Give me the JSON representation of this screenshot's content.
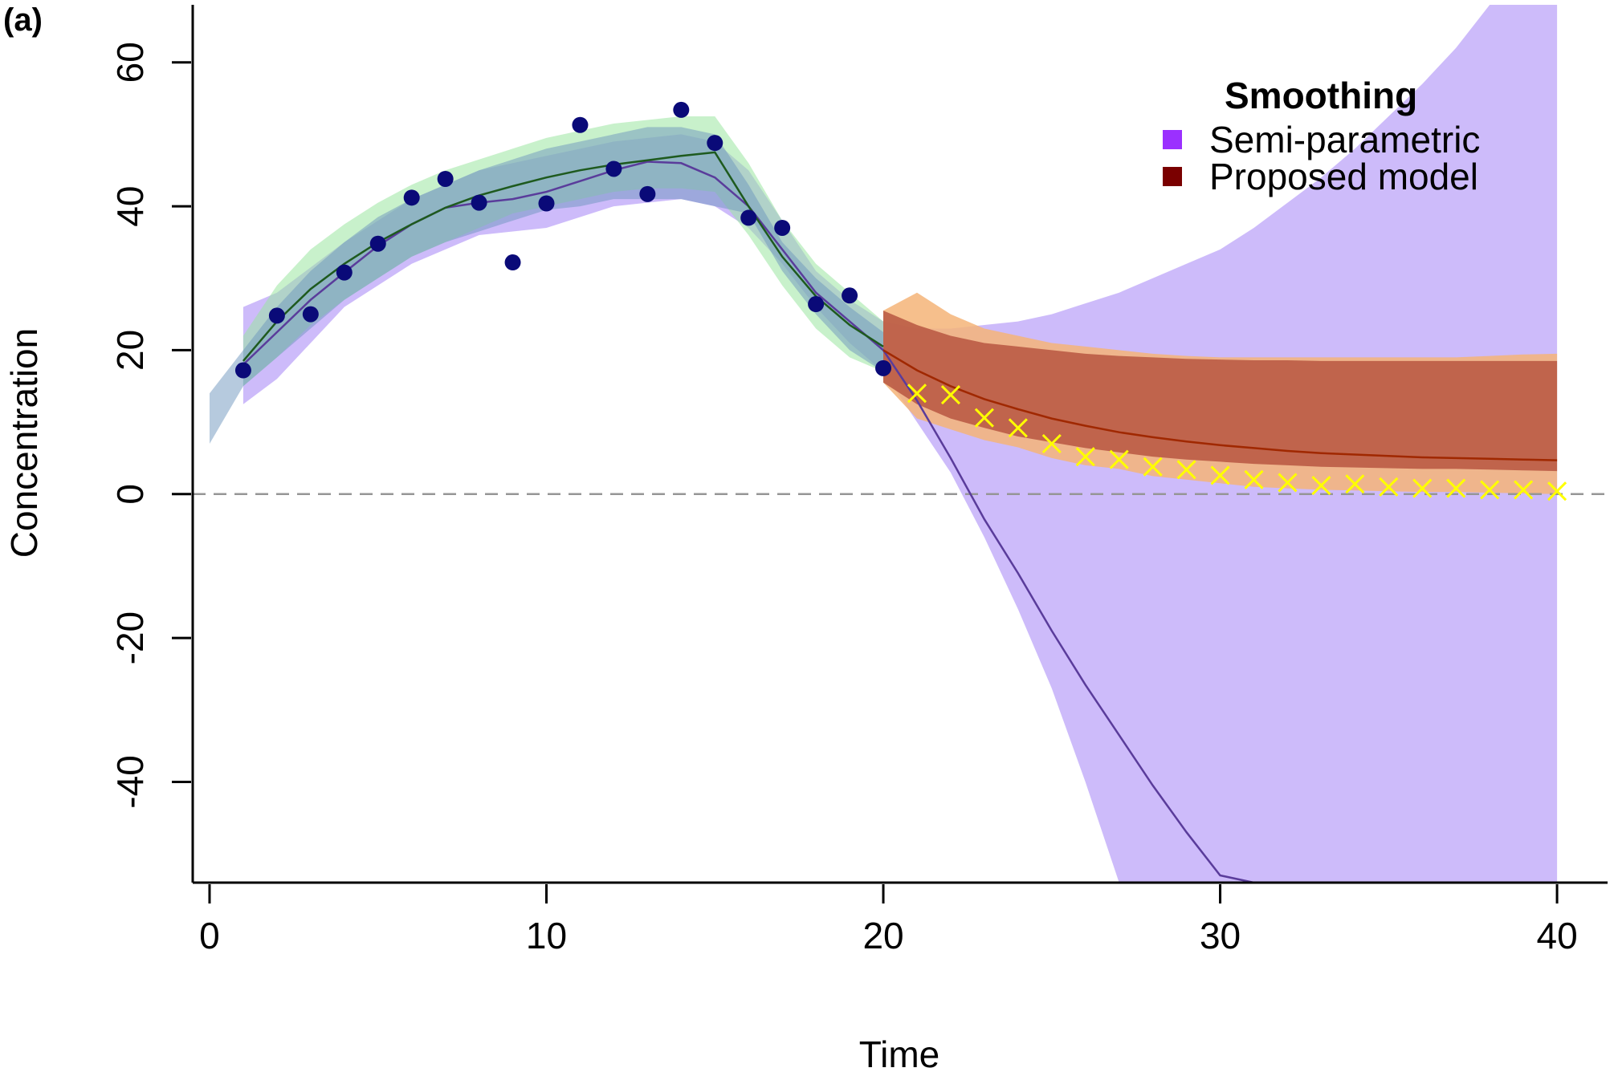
{
  "chart_data": {
    "type": "line",
    "panel_label": "(a)",
    "xlabel": "Time",
    "ylabel": "Concentration",
    "xlim": [
      -0.5,
      41.5
    ],
    "ylim": [
      -54,
      68
    ],
    "xticks": [
      0,
      10,
      20,
      30,
      40
    ],
    "yticks": [
      -40,
      -20,
      0,
      20,
      40,
      60
    ],
    "reference_line_y": 0,
    "legend": {
      "title": "Smoothing",
      "position": "top-right",
      "entries": [
        {
          "label": "Semi-parametric",
          "color": "#9b30ff"
        },
        {
          "label": "Proposed model",
          "color": "#7a0000"
        }
      ]
    },
    "colors": {
      "observed_points": "#0a0a78",
      "forecast_points": "#ffff00",
      "semiparametric_band": "#c8b4fa",
      "semiparametric_line": "#5a3c9b",
      "fit_band_green": "#9ae6a0",
      "fit_band_blue": "#6e96be",
      "fit_line_green": "#1e5a1e",
      "fit_line_gray": "#5f7d8c",
      "proposed_band_outer": "#f5b478",
      "proposed_band_inner": "#b4503c",
      "proposed_line": "#a02800",
      "reference_line": "#969696"
    },
    "observed": {
      "x": [
        1,
        2,
        3,
        4,
        5,
        6,
        7,
        8,
        9,
        10,
        11,
        12,
        13,
        14,
        15,
        16,
        17,
        18,
        19,
        20
      ],
      "y": [
        17.2,
        24.8,
        25.0,
        30.8,
        34.8,
        41.2,
        43.8,
        40.5,
        32.2,
        40.4,
        51.3,
        45.2,
        41.7,
        53.4,
        48.8,
        38.4,
        37.0,
        26.4,
        27.6,
        17.5
      ]
    },
    "forecast": {
      "x": [
        21,
        22,
        23,
        24,
        25,
        26,
        27,
        28,
        29,
        30,
        31,
        32,
        33,
        34,
        35,
        36,
        37,
        38,
        39,
        40
      ],
      "y": [
        14.0,
        13.8,
        10.6,
        9.2,
        7.0,
        5.2,
        4.8,
        3.8,
        3.4,
        2.6,
        2.0,
        1.6,
        1.2,
        1.4,
        1.0,
        0.8,
        0.8,
        0.6,
        0.6,
        0.4
      ]
    },
    "series": [
      {
        "key": "semiparametric_fit",
        "x": [
          1,
          2,
          3,
          4,
          5,
          6,
          7,
          8,
          9,
          10,
          11,
          12,
          13,
          14,
          15,
          16,
          17,
          18,
          19,
          20,
          21,
          22,
          23,
          24,
          25,
          26,
          27,
          28,
          29,
          30,
          31,
          32,
          33,
          33.5
        ],
        "values": [
          18.0,
          22.5,
          27.0,
          30.8,
          34.5,
          37.5,
          39.8,
          40.5,
          41.0,
          42.0,
          43.5,
          45.0,
          46.2,
          46.0,
          44.0,
          40.0,
          34.0,
          28.0,
          24.0,
          20.0,
          13.0,
          5.0,
          -3.5,
          -11.0,
          -19.0,
          -26.5,
          -33.5,
          -40.5,
          -47.0,
          -53.0,
          -54,
          -54,
          -54,
          -54
        ]
      },
      {
        "key": "green_fit",
        "x": [
          1,
          2,
          3,
          4,
          5,
          6,
          7,
          8,
          9,
          10,
          11,
          12,
          13,
          14,
          15,
          16,
          17,
          18,
          19,
          20
        ],
        "values": [
          18.5,
          24.0,
          28.5,
          32.0,
          35.0,
          37.5,
          39.8,
          41.5,
          42.8,
          44.0,
          45.0,
          45.8,
          46.4,
          47.0,
          47.5,
          40.0,
          33.0,
          27.5,
          23.5,
          20.5
        ]
      },
      {
        "key": "proposed_fit",
        "x": [
          20,
          21,
          22,
          23,
          24,
          25,
          26,
          27,
          28,
          29,
          30,
          31,
          32,
          33,
          34,
          35,
          36,
          37,
          38,
          39,
          40
        ],
        "values": [
          20.0,
          17.2,
          15.0,
          13.2,
          11.8,
          10.5,
          9.5,
          8.6,
          7.9,
          7.3,
          6.8,
          6.4,
          6.0,
          5.7,
          5.5,
          5.3,
          5.1,
          5.0,
          4.9,
          4.8,
          4.7
        ]
      }
    ],
    "bands": [
      {
        "key": "semiparametric_band",
        "x": [
          1,
          2,
          4,
          6,
          8,
          10,
          12,
          14,
          15,
          16,
          17,
          18,
          19,
          20,
          21,
          22,
          23,
          24,
          25,
          26,
          27,
          28,
          29,
          30,
          31,
          32,
          33,
          34,
          35,
          36,
          37,
          38,
          39,
          40
        ],
        "lower": [
          12.5,
          16,
          26,
          32,
          36,
          37,
          40,
          41,
          40,
          37,
          32,
          26,
          21,
          17,
          10,
          3,
          -6,
          -16,
          -27,
          -40,
          -54,
          -54,
          -54,
          -54,
          -54,
          -54,
          -54,
          -54,
          -54,
          -54,
          -54,
          -54,
          -54,
          -54
        ],
        "upper": [
          26,
          28,
          35,
          41,
          45,
          47,
          49,
          50,
          49,
          45,
          38,
          31,
          27,
          24,
          23,
          23,
          23.5,
          24,
          25,
          26.5,
          28,
          30,
          32,
          34,
          37,
          40.5,
          44,
          48,
          52.5,
          57,
          62,
          68,
          68,
          68
        ]
      },
      {
        "key": "green_band",
        "x": [
          1,
          2,
          3,
          4,
          5,
          6,
          7,
          8,
          9,
          10,
          11,
          12,
          13,
          14,
          15,
          16,
          17,
          18,
          19,
          20
        ],
        "lower": [
          15,
          19,
          23.5,
          27,
          30,
          33,
          35,
          37,
          39,
          40,
          41,
          42,
          42.5,
          42.5,
          42,
          36,
          29,
          23,
          19,
          17
        ],
        "upper": [
          22,
          29,
          34,
          37.5,
          40.5,
          43,
          45,
          46.5,
          48,
          49.5,
          50.5,
          51.5,
          52,
          52.5,
          52.5,
          46,
          38,
          32,
          28,
          24
        ]
      },
      {
        "key": "blue_band",
        "x": [
          0,
          1,
          2,
          3,
          4,
          5,
          6,
          7,
          8,
          9,
          10,
          11,
          12,
          13,
          14,
          15,
          16,
          17,
          18,
          19,
          20
        ],
        "lower": [
          7,
          15,
          19,
          23,
          27,
          30,
          33,
          35,
          36.5,
          38,
          39.5,
          40,
          41,
          41,
          41,
          40,
          39,
          31,
          25,
          20,
          17
        ],
        "upper": [
          14,
          20,
          26,
          31,
          35,
          38.5,
          41,
          43,
          45,
          46.5,
          48,
          49,
          50,
          51,
          51,
          50,
          43,
          35,
          30,
          26,
          22.5
        ]
      },
      {
        "key": "proposed_band_outer",
        "x": [
          20,
          21,
          22,
          23,
          24,
          25,
          26,
          27,
          28,
          29,
          30,
          31,
          32,
          33,
          34,
          35,
          36,
          37,
          38,
          39,
          40
        ],
        "lower": [
          15.5,
          10.5,
          9,
          7.5,
          6.5,
          5,
          4,
          3.5,
          2.5,
          2,
          1.5,
          1,
          0.8,
          0.6,
          0.5,
          0.4,
          0.3,
          0.3,
          0.2,
          0.1,
          0
        ],
        "upper": [
          25.5,
          28,
          25,
          23,
          22,
          21,
          20.5,
          20,
          19.5,
          19.2,
          19,
          19,
          19,
          19,
          19,
          19,
          19,
          19,
          19.2,
          19.4,
          19.5
        ]
      },
      {
        "key": "proposed_band_inner",
        "x": [
          20,
          21,
          22,
          23,
          24,
          25,
          26,
          27,
          28,
          29,
          30,
          31,
          32,
          33,
          34,
          35,
          36,
          37,
          38,
          39,
          40
        ],
        "lower": [
          15.5,
          12.5,
          10.5,
          9.2,
          8,
          7.2,
          6.4,
          5.8,
          5.2,
          4.8,
          4.5,
          4.2,
          4,
          3.8,
          3.7,
          3.6,
          3.5,
          3.5,
          3.4,
          3.3,
          3.2
        ],
        "upper": [
          25.5,
          23.5,
          22,
          21,
          20.5,
          20,
          19.5,
          19.2,
          19,
          18.8,
          18.7,
          18.6,
          18.6,
          18.5,
          18.5,
          18.5,
          18.5,
          18.5,
          18.5,
          18.5,
          18.5
        ]
      }
    ]
  }
}
